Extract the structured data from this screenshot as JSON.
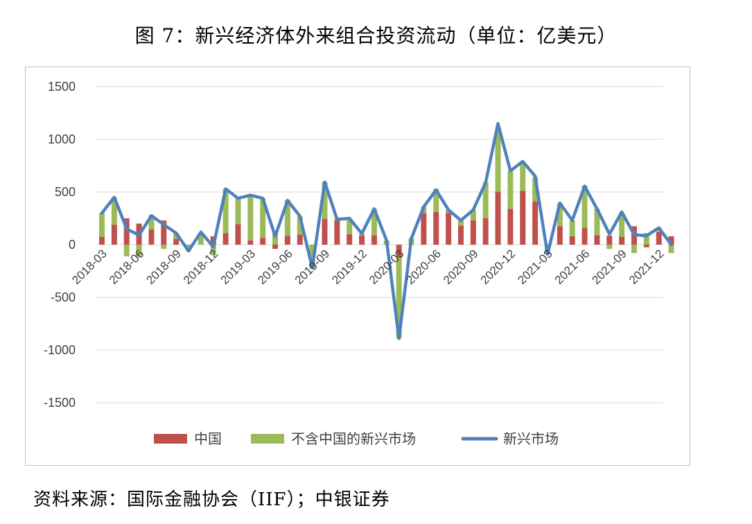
{
  "title": "图 7：新兴经济体外来组合投资流动（单位：亿美元）",
  "source": "资料来源：国际金融协会（IIF）；中银证券",
  "chart_data": {
    "type": "bar",
    "title": "图 7：新兴经济体外来组合投资流动（单位：亿美元）",
    "ylim": [
      -1500,
      1500
    ],
    "yticks": [
      1500,
      1000,
      500,
      0,
      -500,
      -1000,
      -1500
    ],
    "ytick_labels": [
      "1500",
      "1000",
      "500",
      "0",
      "-500",
      "-1000",
      "-1500"
    ],
    "legend_position": "bottom",
    "grid": true,
    "categories": [
      "2018-03",
      "2018-04",
      "2018-05",
      "2018-06",
      "2018-07",
      "2018-08",
      "2018-09",
      "2018-10",
      "2018-11",
      "2018-12",
      "2019-01",
      "2019-02",
      "2019-03",
      "2019-04",
      "2019-05",
      "2019-06",
      "2019-07",
      "2019-08",
      "2019-09",
      "2019-10",
      "2019-11",
      "2019-12",
      "2020-01",
      "2020-02",
      "2020-03",
      "2020-04",
      "2020-05",
      "2020-06",
      "2020-07",
      "2020-08",
      "2020-09",
      "2020-10",
      "2020-11",
      "2020-12",
      "2021-01",
      "2021-02",
      "2021-03",
      "2021-04",
      "2021-05",
      "2021-06",
      "2021-07",
      "2021-08",
      "2021-09",
      "2021-10",
      "2021-11",
      "2021-12",
      "2022-01"
    ],
    "x_tick_labels": [
      "2018-03",
      "2018-06",
      "2018-09",
      "2018-12",
      "2019-03",
      "2019-06",
      "2019-09",
      "2019-12",
      "2020-03",
      "2020-06",
      "2020-09",
      "2020-12",
      "2021-03",
      "2021-06",
      "2021-09",
      "2021-12"
    ],
    "series": [
      {
        "name": "中国",
        "kind": "bar",
        "color": "#C0504D",
        "values": [
          75,
          190,
          250,
          200,
          145,
          230,
          55,
          0,
          0,
          80,
          110,
          195,
          40,
          65,
          -40,
          85,
          95,
          0,
          245,
          230,
          100,
          85,
          90,
          0,
          -120,
          0,
          300,
          310,
          300,
          180,
          230,
          250,
          500,
          340,
          510,
          410,
          0,
          175,
          80,
          160,
          90,
          85,
          75,
          175,
          -25,
          120,
          80
        ]
      },
      {
        "name": "不含中国的新兴市场",
        "kind": "bar",
        "color": "#9BBB59",
        "values": [
          225,
          260,
          -110,
          -110,
          135,
          -40,
          55,
          -60,
          110,
          -100,
          420,
          245,
          435,
          375,
          120,
          340,
          175,
          -230,
          350,
          20,
          150,
          20,
          250,
          40,
          -770,
          60,
          60,
          220,
          30,
          50,
          100,
          340,
          600,
          360,
          280,
          230,
          -90,
          220,
          150,
          400,
          250,
          -40,
          230,
          -80,
          110,
          40,
          -80
        ]
      },
      {
        "name": "新兴市场",
        "kind": "line",
        "color": "#4F81BD",
        "values": [
          300,
          450,
          150,
          90,
          275,
          190,
          110,
          -60,
          120,
          -20,
          530,
          440,
          470,
          440,
          80,
          420,
          270,
          -220,
          595,
          240,
          250,
          105,
          340,
          40,
          -890,
          60,
          360,
          520,
          330,
          230,
          330,
          590,
          1150,
          700,
          790,
          650,
          -90,
          395,
          230,
          555,
          340,
          100,
          310,
          95,
          85,
          160,
          0
        ]
      }
    ]
  }
}
